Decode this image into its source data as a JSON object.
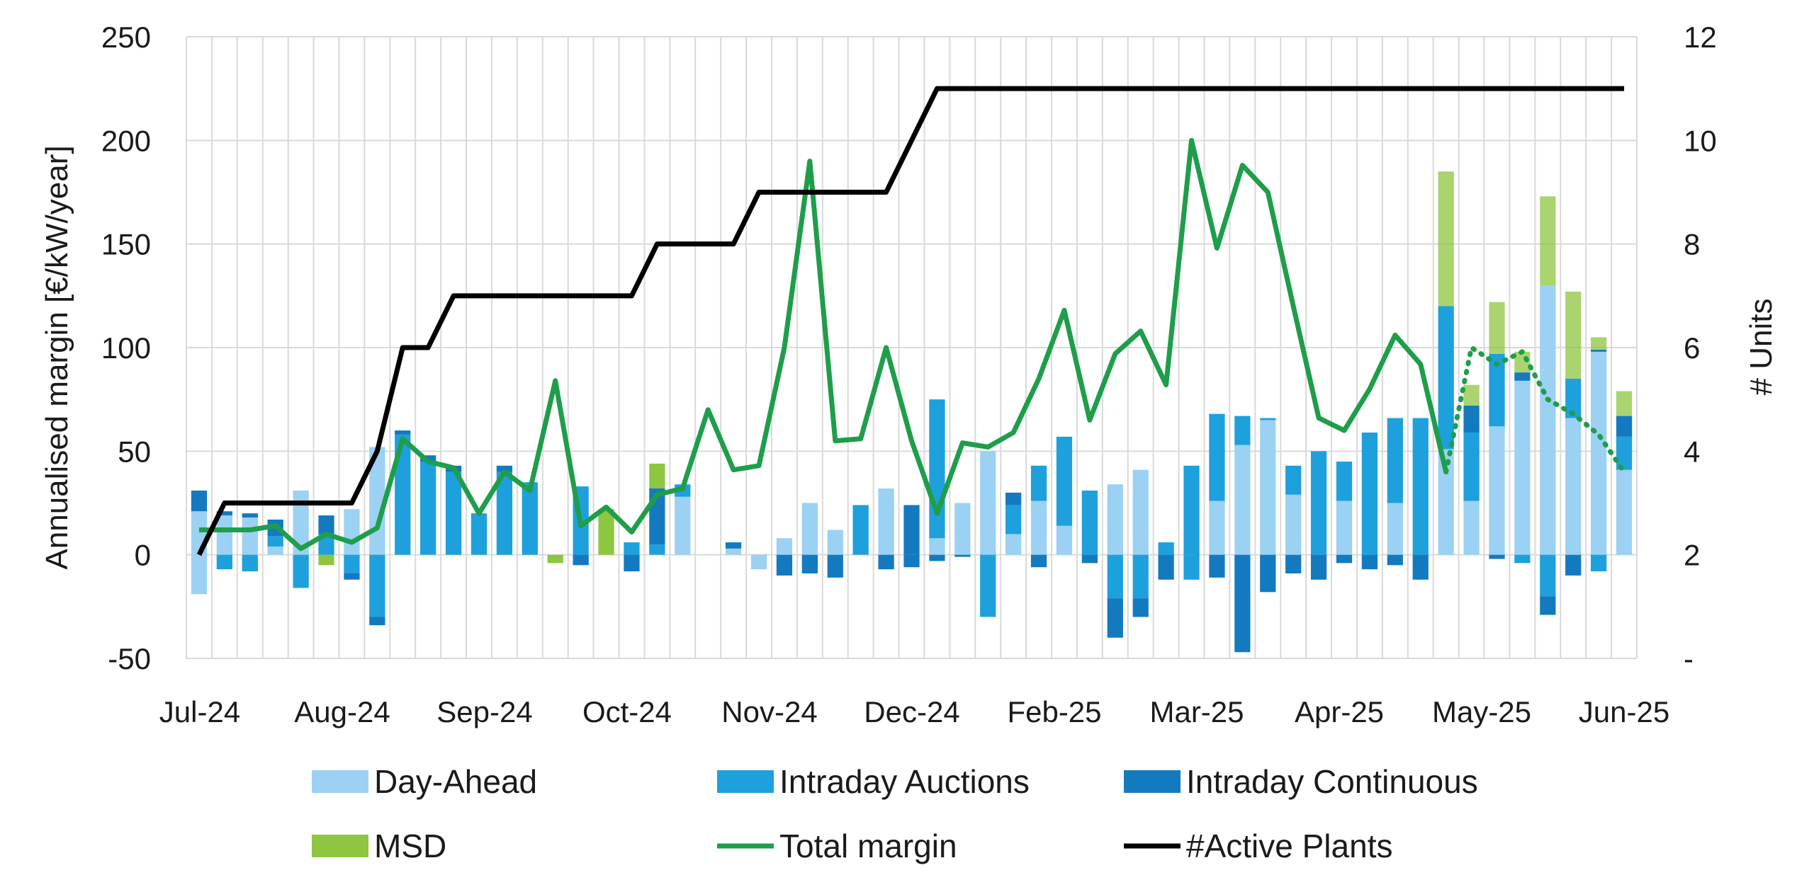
{
  "chart_data": {
    "type": "bar",
    "stacked": true,
    "title": "",
    "ylabel": "Annualised margin [€/kW/year]",
    "y2label": "# Units",
    "ylim": [
      -50,
      250
    ],
    "y2lim": [
      0,
      12
    ],
    "y_ticks": [
      -50,
      0,
      50,
      100,
      150,
      200,
      250
    ],
    "y2_tick_labels": [
      "-",
      "2",
      "4",
      "6",
      "8",
      "10",
      "12"
    ],
    "x_tick_labels": [
      "Jul-24",
      "Aug-24",
      "Sep-24",
      "Oct-24",
      "Nov-24",
      "Dec-24",
      "Feb-25",
      "Mar-25",
      "Apr-25",
      "May-25",
      "Jun-25"
    ],
    "grid": true,
    "legend_position": "bottom",
    "series": [
      {
        "name": "Day-Ahead",
        "kind": "bar",
        "color": "#9bd1f2",
        "pos": [
          21,
          19,
          18,
          4,
          31,
          0,
          22,
          52,
          0,
          0,
          0,
          0,
          0,
          0,
          0,
          0,
          0,
          0,
          0,
          28,
          0,
          3,
          0,
          8,
          25,
          12,
          0,
          32,
          0,
          8,
          25,
          50,
          10,
          26,
          14,
          0,
          34,
          41,
          0,
          0,
          26,
          53,
          65,
          29,
          0,
          26,
          0,
          25,
          0,
          51,
          26,
          62,
          84,
          130,
          66,
          98,
          41
        ],
        "neg": [
          -19,
          0,
          0,
          0,
          0,
          0,
          0,
          0,
          0,
          0,
          0,
          0,
          0,
          0,
          0,
          0,
          0,
          0,
          0,
          0,
          0,
          0,
          -7,
          0,
          0,
          0,
          0,
          0,
          0,
          0,
          0,
          0,
          0,
          0,
          0,
          0,
          0,
          0,
          0,
          0,
          0,
          0,
          0,
          0,
          0,
          0,
          0,
          0,
          0,
          0,
          0,
          0,
          0,
          0,
          0,
          0,
          0
        ]
      },
      {
        "name": "Intraday Auctions",
        "kind": "bar",
        "color": "#1ea0dc",
        "pos": [
          0,
          0,
          0,
          5,
          0,
          10,
          0,
          0,
          58,
          45,
          40,
          20,
          40,
          35,
          0,
          33,
          0,
          6,
          5,
          6,
          0,
          0,
          0,
          0,
          0,
          0,
          24,
          0,
          0,
          67,
          0,
          0,
          14,
          17,
          43,
          31,
          0,
          0,
          6,
          43,
          42,
          14,
          1,
          14,
          50,
          19,
          59,
          41,
          66,
          69,
          33,
          35,
          0,
          0,
          19,
          0,
          16
        ],
        "neg": [
          0,
          -7,
          -8,
          0,
          -16,
          0,
          -9,
          -30,
          0,
          0,
          0,
          0,
          0,
          0,
          0,
          0,
          0,
          0,
          0,
          0,
          0,
          0,
          0,
          0,
          0,
          0,
          0,
          0,
          0,
          0,
          0,
          -30,
          0,
          0,
          0,
          0,
          -21,
          -21,
          0,
          -12,
          0,
          0,
          0,
          0,
          0,
          0,
          0,
          0,
          0,
          0,
          0,
          0,
          -4,
          -20,
          0,
          -8,
          0
        ]
      },
      {
        "name": "Intraday Continuous",
        "kind": "bar",
        "color": "#137ac0",
        "pos": [
          10,
          2,
          2,
          8,
          0,
          9,
          0,
          0,
          2,
          3,
          3,
          0,
          3,
          0,
          0,
          0,
          0,
          0,
          27,
          0,
          0,
          3,
          0,
          0,
          0,
          0,
          0,
          0,
          24,
          0,
          0,
          0,
          6,
          0,
          0,
          0,
          0,
          0,
          0,
          0,
          0,
          0,
          0,
          0,
          0,
          0,
          0,
          0,
          0,
          0,
          13,
          0,
          4,
          0,
          0,
          1,
          10
        ],
        "neg": [
          0,
          0,
          0,
          0,
          0,
          0,
          -3,
          -4,
          0,
          0,
          0,
          0,
          0,
          0,
          0,
          -5,
          0,
          -8,
          0,
          0,
          0,
          0,
          0,
          -10,
          -9,
          -11,
          0,
          -7,
          -6,
          -3,
          -1,
          0,
          0,
          -6,
          0,
          -4,
          -19,
          -9,
          -12,
          0,
          -11,
          -47,
          -18,
          -9,
          -12,
          -4,
          -7,
          -5,
          -12,
          0,
          0,
          -2,
          0,
          -9,
          -10,
          0,
          0
        ]
      },
      {
        "name": "MSD",
        "kind": "bar",
        "color": "#8dc63f",
        "pos": [
          0,
          0,
          0,
          0,
          0,
          0,
          0,
          0,
          0,
          0,
          0,
          0,
          0,
          0,
          0,
          0,
          22,
          0,
          12,
          0,
          0,
          0,
          0,
          0,
          0,
          0,
          0,
          0,
          0,
          0,
          0,
          0,
          0,
          0,
          0,
          0,
          0,
          0,
          0,
          0,
          0,
          0,
          0,
          0,
          0,
          0,
          0,
          0,
          0,
          65,
          10,
          25,
          10,
          43,
          42,
          6,
          12
        ],
        "neg": [
          0,
          0,
          0,
          0,
          0,
          -5,
          0,
          0,
          0,
          0,
          0,
          0,
          0,
          0,
          -4,
          0,
          0,
          0,
          0,
          0,
          0,
          0,
          0,
          0,
          0,
          0,
          0,
          0,
          0,
          0,
          0,
          0,
          0,
          0,
          0,
          0,
          0,
          0,
          0,
          0,
          0,
          0,
          0,
          0,
          0,
          0,
          0,
          0,
          0,
          0,
          0,
          0,
          0,
          0,
          0,
          0,
          0
        ]
      },
      {
        "name": "Total margin",
        "kind": "line",
        "color": "#1e9e4a",
        "values": [
          12,
          12,
          12,
          14,
          3,
          10,
          6,
          13,
          56,
          45,
          42,
          20,
          40,
          31,
          84,
          14,
          23,
          11,
          29,
          32,
          70,
          41,
          43,
          100,
          190,
          55,
          56,
          100,
          55,
          20,
          54,
          52,
          59,
          85,
          118,
          65,
          97,
          108,
          82,
          200,
          148,
          188,
          175,
          120,
          66,
          60,
          80,
          106,
          92,
          40,
          100,
          92,
          98,
          75,
          68,
          58,
          40
        ]
      },
      {
        "name": "#Active Plants",
        "kind": "line",
        "axis": "secondary",
        "color": "#000000",
        "values": [
          2,
          3,
          3,
          3,
          3,
          3,
          3,
          4,
          6,
          6,
          7,
          7,
          7,
          7,
          7,
          7,
          7,
          7,
          8,
          8,
          8,
          8,
          9,
          9,
          9,
          9,
          9,
          9,
          10,
          11,
          11,
          11,
          11,
          11,
          11,
          11,
          11,
          11,
          11,
          11,
          11,
          11,
          11,
          11,
          11,
          11,
          11,
          11,
          11,
          11,
          11,
          11,
          11,
          11,
          11,
          11,
          11
        ]
      }
    ]
  },
  "legend": {
    "items": [
      {
        "label": "Day-Ahead",
        "kind": "box",
        "color": "#9bd1f2"
      },
      {
        "label": "Intraday Auctions",
        "kind": "box",
        "color": "#1ea0dc"
      },
      {
        "label": "Intraday Continuous",
        "kind": "box",
        "color": "#137ac0"
      },
      {
        "label": "MSD",
        "kind": "box",
        "color": "#8dc63f"
      },
      {
        "label": "Total margin",
        "kind": "line",
        "color": "#1e9e4a"
      },
      {
        "label": "#Active Plants",
        "kind": "line",
        "color": "#000000"
      }
    ]
  }
}
